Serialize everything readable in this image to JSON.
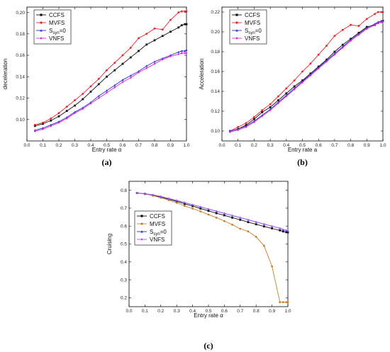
{
  "chart_data": [
    {
      "type": "line",
      "caption": "(a)",
      "xlabel": "Entry rate α",
      "ylabel": "deceleration",
      "xlim": [
        0.0,
        1.0
      ],
      "ylim": [
        0.08,
        0.205
      ],
      "xticks": [
        "0.0",
        "0.1",
        "0.2",
        "0.3",
        "0.4",
        "0.5",
        "0.6",
        "0.7",
        "0.8",
        "0.9",
        "1.0"
      ],
      "yticks": [
        "0.10",
        "0.12",
        "0.14",
        "0.16",
        "0.18",
        "0.20"
      ],
      "ytick_values": [
        0.1,
        0.12,
        0.14,
        0.16,
        0.18,
        0.2
      ],
      "grid": false,
      "legend_position": "top-left",
      "x": [
        0.05,
        0.1,
        0.15,
        0.2,
        0.25,
        0.3,
        0.35,
        0.4,
        0.45,
        0.5,
        0.55,
        0.6,
        0.65,
        0.7,
        0.75,
        0.8,
        0.85,
        0.9,
        0.95,
        0.97,
        0.99,
        1.0
      ],
      "series": [
        {
          "name": "CCFS",
          "color": "#111111",
          "marker": "square",
          "values": [
            0.094,
            0.096,
            0.099,
            0.103,
            0.108,
            0.113,
            0.119,
            0.126,
            0.133,
            0.14,
            0.146,
            0.152,
            0.158,
            0.164,
            0.17,
            0.174,
            0.178,
            0.182,
            0.186,
            0.188,
            0.189,
            0.189
          ]
        },
        {
          "name": "MVFS",
          "color": "#e8222a",
          "marker": "circle",
          "values": [
            0.095,
            0.097,
            0.101,
            0.106,
            0.112,
            0.118,
            0.124,
            0.131,
            0.138,
            0.146,
            0.153,
            0.16,
            0.167,
            0.176,
            0.18,
            0.185,
            0.184,
            0.193,
            0.2,
            0.201,
            0.201,
            0.201
          ]
        },
        {
          "name": "S_syn=0",
          "color": "#2233cc",
          "marker": "triangle",
          "values": [
            0.09,
            0.092,
            0.095,
            0.098,
            0.102,
            0.107,
            0.111,
            0.116,
            0.122,
            0.127,
            0.132,
            0.137,
            0.141,
            0.145,
            0.15,
            0.154,
            0.157,
            0.16,
            0.163,
            0.164,
            0.164,
            0.165
          ]
        },
        {
          "name": "VNFS",
          "color": "#dd22dd",
          "marker": "diamond",
          "values": [
            0.089,
            0.091,
            0.094,
            0.097,
            0.101,
            0.106,
            0.11,
            0.115,
            0.12,
            0.125,
            0.13,
            0.135,
            0.139,
            0.144,
            0.148,
            0.152,
            0.156,
            0.159,
            0.161,
            0.162,
            0.162,
            0.162
          ]
        }
      ]
    },
    {
      "type": "line",
      "caption": "(b)",
      "xlabel": "Entry rate a",
      "ylabel": "Acceleration",
      "xlim": [
        0.0,
        1.0
      ],
      "ylim": [
        0.09,
        0.225
      ],
      "xticks": [
        "0.0",
        "0.1",
        "0.2",
        "0.3",
        "0.4",
        "0.5",
        "0.6",
        "0.7",
        "0.8",
        "0.9",
        "1.0"
      ],
      "yticks": [
        "0.10",
        "0.12",
        "0.14",
        "0.16",
        "0.18",
        "0.20",
        "0.22"
      ],
      "ytick_values": [
        0.1,
        0.12,
        0.14,
        0.16,
        0.18,
        0.2,
        0.22
      ],
      "grid": false,
      "legend_position": "top-left",
      "x": [
        0.05,
        0.1,
        0.15,
        0.2,
        0.25,
        0.3,
        0.35,
        0.4,
        0.45,
        0.5,
        0.55,
        0.6,
        0.65,
        0.7,
        0.75,
        0.8,
        0.85,
        0.9,
        0.95,
        0.97,
        0.99,
        1.0
      ],
      "series": [
        {
          "name": "CCFS",
          "color": "#111111",
          "marker": "square",
          "values": [
            0.1,
            0.102,
            0.106,
            0.112,
            0.119,
            0.124,
            0.131,
            0.138,
            0.145,
            0.151,
            0.158,
            0.165,
            0.172,
            0.18,
            0.187,
            0.193,
            0.199,
            0.205,
            0.207,
            0.209,
            0.21,
            0.211
          ]
        },
        {
          "name": "MVFS",
          "color": "#e8222a",
          "marker": "circle",
          "values": [
            0.1,
            0.104,
            0.108,
            0.114,
            0.121,
            0.127,
            0.135,
            0.143,
            0.151,
            0.16,
            0.168,
            0.177,
            0.186,
            0.196,
            0.202,
            0.207,
            0.206,
            0.213,
            0.218,
            0.22,
            0.22,
            0.22
          ]
        },
        {
          "name": "S_syn=0",
          "color": "#2233cc",
          "marker": "triangle",
          "values": [
            0.1,
            0.102,
            0.105,
            0.11,
            0.116,
            0.122,
            0.129,
            0.136,
            0.143,
            0.15,
            0.157,
            0.164,
            0.171,
            0.178,
            0.185,
            0.192,
            0.198,
            0.204,
            0.208,
            0.21,
            0.211,
            0.211
          ]
        },
        {
          "name": "VNFS",
          "color": "#dd22dd",
          "marker": "diamond",
          "values": [
            0.099,
            0.101,
            0.104,
            0.109,
            0.115,
            0.121,
            0.128,
            0.135,
            0.142,
            0.149,
            0.156,
            0.163,
            0.17,
            0.177,
            0.184,
            0.191,
            0.197,
            0.203,
            0.207,
            0.209,
            0.21,
            0.21
          ]
        }
      ]
    },
    {
      "type": "line",
      "caption": "(c)",
      "xlabel": "Entry rate α",
      "ylabel": "Cruising",
      "xlim": [
        0.0,
        1.0
      ],
      "ylim": [
        0.15,
        0.85
      ],
      "xticks": [
        "0.0",
        "0.1",
        "0.2",
        "0.3",
        "0.4",
        "0.5",
        "0.6",
        "0.7",
        "0.8",
        "0.9",
        "1.0"
      ],
      "yticks": [
        "0.2",
        "0.3",
        "0.4",
        "0.5",
        "0.6",
        "0.7",
        "0.8"
      ],
      "ytick_values": [
        0.2,
        0.3,
        0.4,
        0.5,
        0.6,
        0.7,
        0.8
      ],
      "grid": false,
      "legend_position": "top-left",
      "x": [
        0.05,
        0.1,
        0.15,
        0.2,
        0.25,
        0.3,
        0.35,
        0.4,
        0.45,
        0.5,
        0.55,
        0.6,
        0.65,
        0.7,
        0.75,
        0.8,
        0.85,
        0.9,
        0.95,
        0.97,
        0.99,
        1.0
      ],
      "series": [
        {
          "name": "CCFS",
          "color": "#111111",
          "marker": "square",
          "values": [
            0.785,
            0.78,
            0.772,
            0.762,
            0.75,
            0.738,
            0.724,
            0.712,
            0.698,
            0.685,
            0.672,
            0.66,
            0.647,
            0.635,
            0.622,
            0.61,
            0.598,
            0.587,
            0.576,
            0.57,
            0.566,
            0.565
          ]
        },
        {
          "name": "MVFS",
          "color": "#c5812a",
          "marker": "circle",
          "values": [
            0.785,
            0.779,
            0.77,
            0.758,
            0.745,
            0.73,
            0.713,
            0.698,
            0.682,
            0.664,
            0.647,
            0.628,
            0.608,
            0.585,
            0.57,
            0.54,
            0.49,
            0.375,
            0.175,
            0.175,
            0.175,
            0.175
          ]
        },
        {
          "name": "S_syn=0",
          "color": "#2233cc",
          "marker": "triangle",
          "values": [
            0.785,
            0.781,
            0.774,
            0.765,
            0.754,
            0.743,
            0.731,
            0.719,
            0.707,
            0.695,
            0.683,
            0.671,
            0.659,
            0.647,
            0.635,
            0.623,
            0.611,
            0.599,
            0.588,
            0.58,
            0.575,
            0.572
          ]
        },
        {
          "name": "VNFS",
          "color": "#aa55ff",
          "marker": "diamond",
          "values": [
            0.785,
            0.781,
            0.774,
            0.765,
            0.754,
            0.743,
            0.731,
            0.719,
            0.707,
            0.695,
            0.683,
            0.671,
            0.659,
            0.647,
            0.635,
            0.623,
            0.611,
            0.599,
            0.588,
            0.581,
            0.576,
            0.574
          ]
        }
      ]
    }
  ]
}
